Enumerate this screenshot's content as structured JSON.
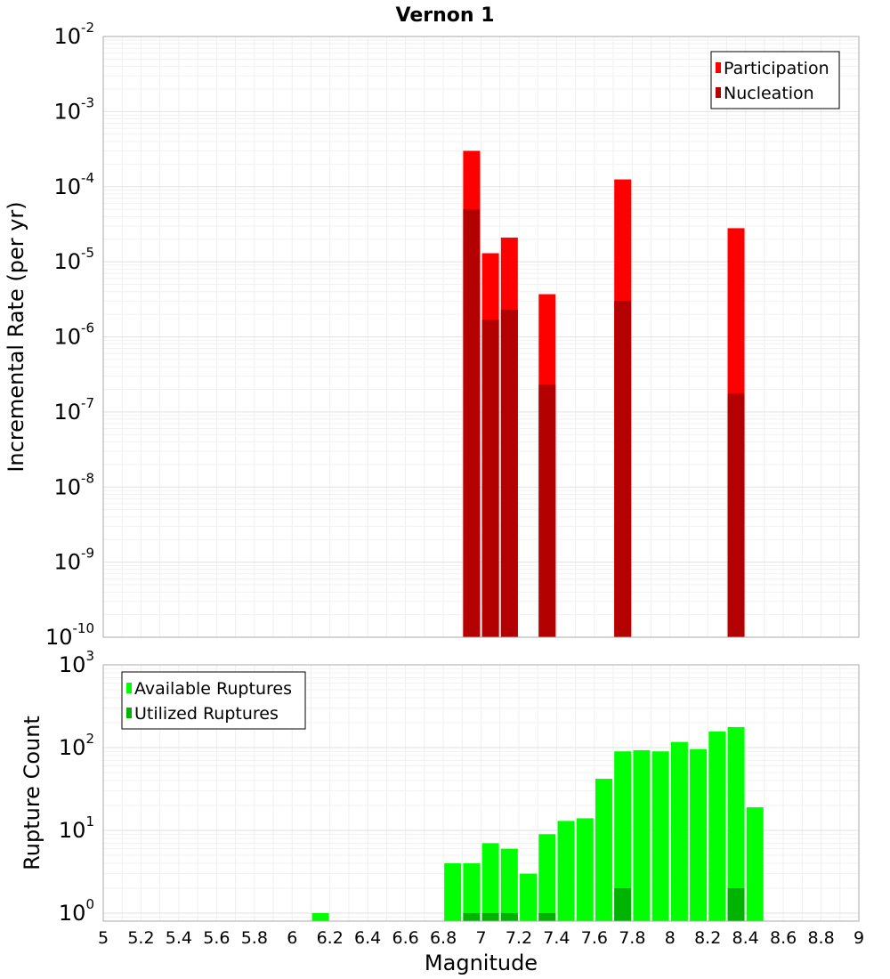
{
  "chart_data": [
    {
      "type": "bar",
      "title": "Vernon 1",
      "xlabel": "",
      "ylabel": "Incremental Rate (per yr)",
      "yscale": "log",
      "ylim": [
        1e-10,
        0.01
      ],
      "xlim": [
        5,
        9
      ],
      "grid": true,
      "legend_position": "top-right",
      "x": [
        6.95,
        7.05,
        7.15,
        7.35,
        7.75,
        8.35
      ],
      "series": [
        {
          "name": "Participation",
          "color": "#ff0000",
          "values": [
            0.0003,
            1.3e-05,
            2.1e-05,
            3.7e-06,
            0.000125,
            2.8e-05
          ]
        },
        {
          "name": "Nucleation",
          "color": "#b30000",
          "values": [
            5e-05,
            1.7e-06,
            2.3e-06,
            2.3e-07,
            3e-06,
            1.75e-07
          ]
        }
      ],
      "ytick_exponents": [
        "-2",
        "-3",
        "-4",
        "-5",
        "-6",
        "-7",
        "-8",
        "-9",
        "-10"
      ],
      "ytick_base": "10"
    },
    {
      "type": "bar",
      "title": "",
      "xlabel": "Magnitude",
      "ylabel": "Rupture Count",
      "yscale": "log",
      "ylim": [
        0.8,
        1000
      ],
      "xlim": [
        5,
        9
      ],
      "grid": true,
      "legend_position": "top-left",
      "x": [
        6.15,
        6.85,
        6.95,
        7.05,
        7.15,
        7.25,
        7.35,
        7.45,
        7.55,
        7.65,
        7.75,
        7.85,
        7.95,
        8.05,
        8.15,
        8.25,
        8.35,
        8.45
      ],
      "series": [
        {
          "name": "Available Ruptures",
          "color": "#00ff00",
          "values": [
            1,
            4,
            4,
            7,
            6,
            3,
            9,
            13,
            14,
            42,
            90,
            93,
            90,
            117,
            96,
            157,
            177,
            19
          ]
        },
        {
          "name": "Utilized Ruptures",
          "color": "#00b300",
          "values": [
            0,
            0,
            1,
            1,
            1,
            0,
            1,
            0,
            0,
            0,
            2,
            0,
            0,
            0,
            0,
            0,
            2,
            0
          ]
        }
      ],
      "xticks": [
        "5",
        "5.2",
        "5.4",
        "5.6",
        "5.8",
        "6",
        "6.2",
        "6.4",
        "6.6",
        "6.8",
        "7",
        "7.2",
        "7.4",
        "7.6",
        "7.8",
        "8",
        "8.2",
        "8.4",
        "8.6",
        "8.8",
        "9"
      ],
      "ytick_exponents": [
        "3",
        "2",
        "1",
        "0"
      ],
      "ytick_base": "10"
    }
  ]
}
